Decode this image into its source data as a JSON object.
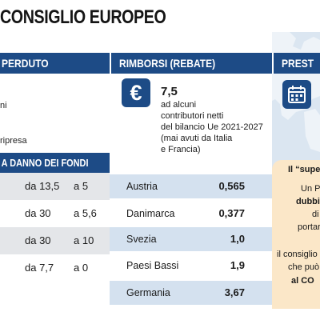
{
  "title": "CONSIGLIO EUROPEO",
  "columns": {
    "left_header": "PERDUTO",
    "mid_header": "RIMBORSI (REBATE)",
    "right_header": "PREST"
  },
  "left": {
    "lines": [
      "ni",
      "ripresa"
    ],
    "band_label": "A DANNO DEI  FONDI",
    "rows": [
      {
        "from": "da 13,5",
        "to": "a 5"
      },
      {
        "from": "da 30",
        "to": "a 5,6"
      },
      {
        "from": "da 30",
        "to": "a 10"
      },
      {
        "from": "da 7,7",
        "to": "a 0"
      }
    ]
  },
  "rebates": {
    "icon": "euro-icon",
    "value": "7,5",
    "description_lines": [
      "ad alcuni",
      "contributori netti",
      "del bilancio Ue 2021-2027",
      "(mai avuti da Italia",
      "e Francia)"
    ],
    "rows": [
      {
        "country": "Austria",
        "value": "0,565"
      },
      {
        "country": "Danimarca",
        "value": "0,377"
      },
      {
        "country": "Svezia",
        "value": "1,0"
      },
      {
        "country": "Paesi Bassi",
        "value": "1,9"
      },
      {
        "country": "Germania",
        "value": "3,67"
      }
    ]
  },
  "right": {
    "icon": "calendar-icon",
    "box_title": "Il “super",
    "box_lines": [
      "Un Pa",
      "dubbi s",
      "di",
      "portar",
      "il consiglio",
      "che può",
      "al CO"
    ]
  },
  "colors": {
    "navy": "#1d4b86",
    "row_shade_gray": "#e4e6e9",
    "row_shade_blue": "#d4e1ef",
    "box_orange": "#fbe7c8",
    "map_blue": "#dbe6f1"
  }
}
